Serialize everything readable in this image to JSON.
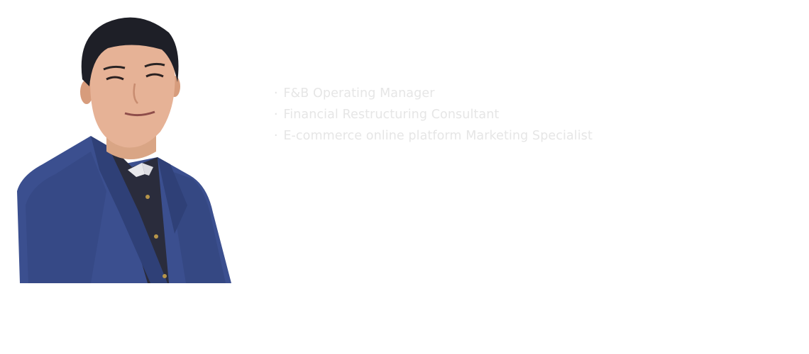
{
  "profile": {
    "roles": [
      "F&B Operating Manager",
      "Financial Restructuring Consultant",
      "E-commerce online platform Marketing Specialist"
    ],
    "bullet": "·"
  },
  "colors": {
    "background": "#ffffff",
    "role_text": "#e6e6e6",
    "suit": "#3b4f8f",
    "shirt": "#2a2c3c"
  }
}
